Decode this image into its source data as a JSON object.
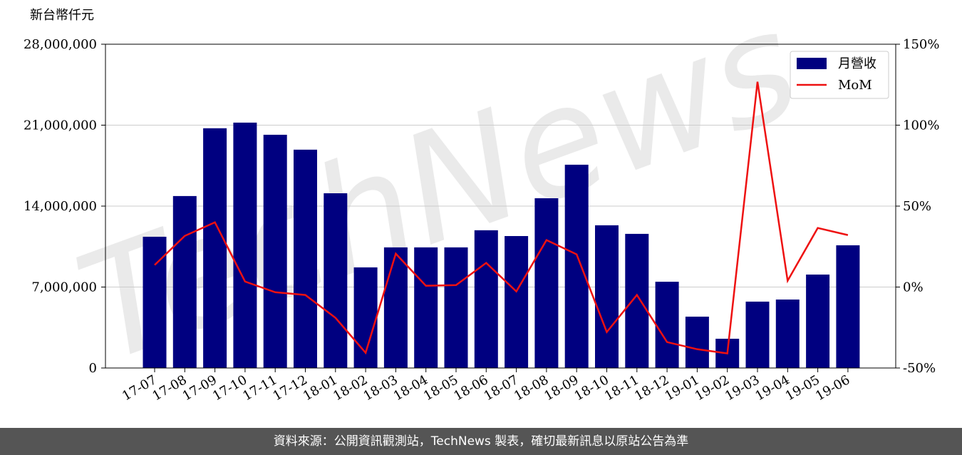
{
  "chart_data": {
    "type": "bar-line",
    "y_axis_label": "新台幣仟元",
    "watermark": "TechNews",
    "categories": [
      "17-07",
      "17-08",
      "17-09",
      "17-10",
      "17-11",
      "17-12",
      "18-01",
      "18-02",
      "18-03",
      "18-04",
      "18-05",
      "18-06",
      "18-07",
      "18-08",
      "18-09",
      "18-10",
      "18-11",
      "18-12",
      "19-01",
      "19-02",
      "19-03",
      "19-04",
      "19-05",
      "19-06"
    ],
    "series": [
      {
        "name": "月營收",
        "type": "bar",
        "color": "#000080",
        "values": [
          11350000,
          14870000,
          20730000,
          21220000,
          20170000,
          18880000,
          15110000,
          8700000,
          10430000,
          10430000,
          10430000,
          11910000,
          11410000,
          14680000,
          17580000,
          12340000,
          11600000,
          7460000,
          4440000,
          2530000,
          5740000,
          5920000,
          8080000,
          10610000
        ]
      },
      {
        "name": "MoM",
        "type": "line",
        "axis": "y2",
        "color": "#ee1111",
        "values": [
          13.6,
          31.6,
          40,
          3.4,
          -3.2,
          -4.9,
          -19,
          -40.6,
          20.6,
          0.8,
          1.2,
          14.9,
          -2.7,
          29,
          20.2,
          -27.8,
          -4.9,
          -34,
          -38.4,
          -41,
          126.8,
          3.9,
          36.5,
          32.1
        ]
      }
    ],
    "ylim": [
      0,
      28000000
    ],
    "yticks": [
      0,
      {
        "value": 7000000,
        "label": "7,000,000"
      },
      {
        "value": 14000000,
        "label": "14,000,000"
      },
      {
        "value": 21000000,
        "label": "21,000,000"
      },
      {
        "value": 28000000,
        "label": "28,000,000"
      }
    ],
    "y2lim": [
      -50,
      150
    ],
    "y2ticks": [
      {
        "value": -50,
        "label": "-50%"
      },
      {
        "value": 0,
        "label": "0%"
      },
      {
        "value": 50,
        "label": "50%"
      },
      {
        "value": 100,
        "label": "100%"
      },
      {
        "value": 150,
        "label": "150%"
      }
    ],
    "grid": true,
    "legend": "upper-right"
  },
  "footer": "資料來源：公開資訊觀測站，TechNews 製表，確切最新訊息以原站公告為準"
}
